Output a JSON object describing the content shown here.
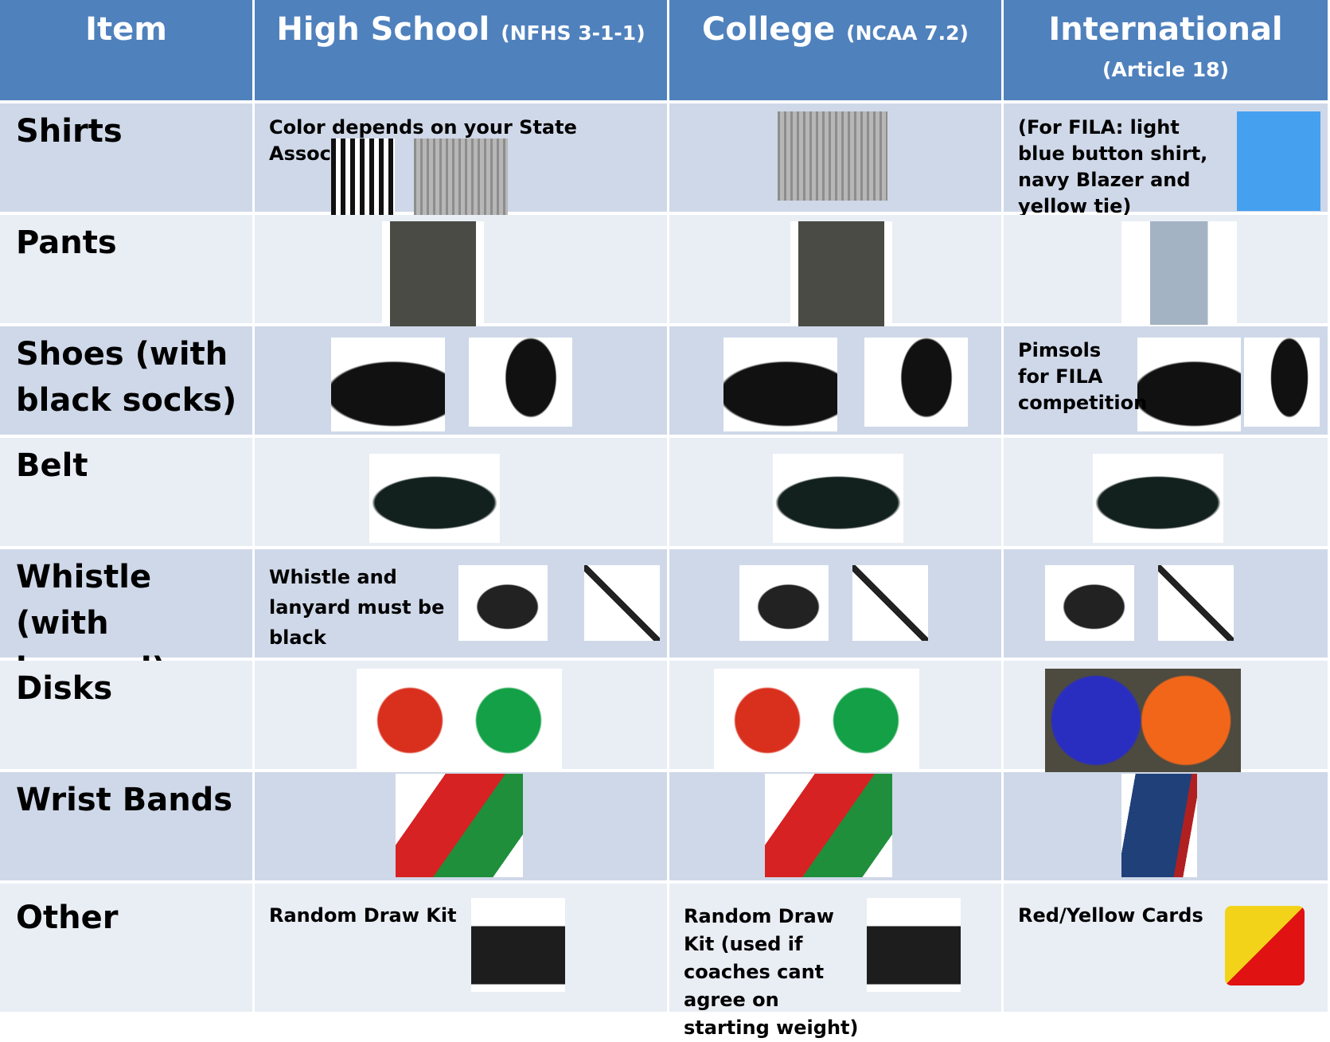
{
  "table": {
    "header": [
      {
        "title": "Item"
      },
      {
        "title": "High School",
        "ref": "(NFHS 3-1-1)"
      },
      {
        "title": "College",
        "ref": "(NCAA 7.2)"
      },
      {
        "title": "International",
        "ref": "(Article 18)"
      }
    ],
    "rows": [
      {
        "item": "Shirts",
        "high_school": "Color depends on your State Association",
        "international": "(For FILA: light blue button shirt, navy Blazer and yellow tie)"
      },
      {
        "item": "Pants"
      },
      {
        "item": "Shoes (with black socks)",
        "international": "Pimsols for FILA competition"
      },
      {
        "item": "Belt"
      },
      {
        "item": "Whistle (with lanyard)",
        "high_school": "Whistle and lanyard must be black"
      },
      {
        "item": "Disks"
      },
      {
        "item": "Wrist Bands"
      },
      {
        "item": "Other",
        "high_school": "Random Draw Kit",
        "college": "Random Draw Kit (used if coaches cant agree on starting weight)",
        "international": "Red/Yellow Cards"
      }
    ]
  }
}
